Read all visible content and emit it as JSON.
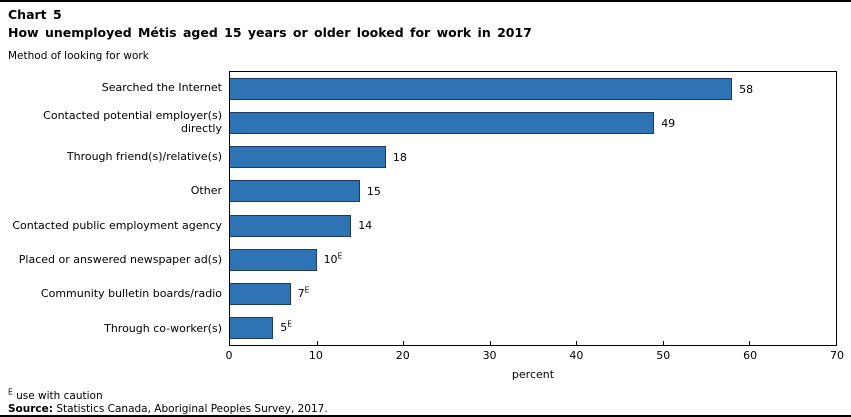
{
  "header": {
    "chart_label": "Chart 5",
    "title": "How unemployed Métis aged 15 years or older looked for work in 2017"
  },
  "axis_title": "Method of looking for work",
  "chart_data": {
    "type": "bar",
    "orientation": "horizontal",
    "categories": [
      "Searched the Internet",
      "Contacted potential employer(s) directly",
      "Through friend(s)/relative(s)",
      "Other",
      "Contacted public employment agency",
      "Placed or answered newspaper ad(s)",
      "Community bulletin boards/radio",
      "Through co-worker(s)"
    ],
    "values": [
      58,
      49,
      18,
      15,
      14,
      10,
      7,
      5
    ],
    "value_flags": [
      false,
      false,
      false,
      false,
      false,
      true,
      true,
      true
    ],
    "flag_symbol": "E",
    "xlabel": "percent",
    "xlim": [
      0,
      70
    ],
    "xticks": [
      0,
      10,
      20,
      30,
      40,
      50,
      60,
      70
    ],
    "grid": false,
    "legend": false,
    "bar_color": "#2E74B5",
    "bar_border_color": "#1F3864"
  },
  "footnotes": {
    "caution_symbol": "E",
    "caution_text": "use with caution",
    "source_label": "Source:",
    "source_text": "Statistics Canada, Aboriginal Peoples Survey, 2017."
  }
}
